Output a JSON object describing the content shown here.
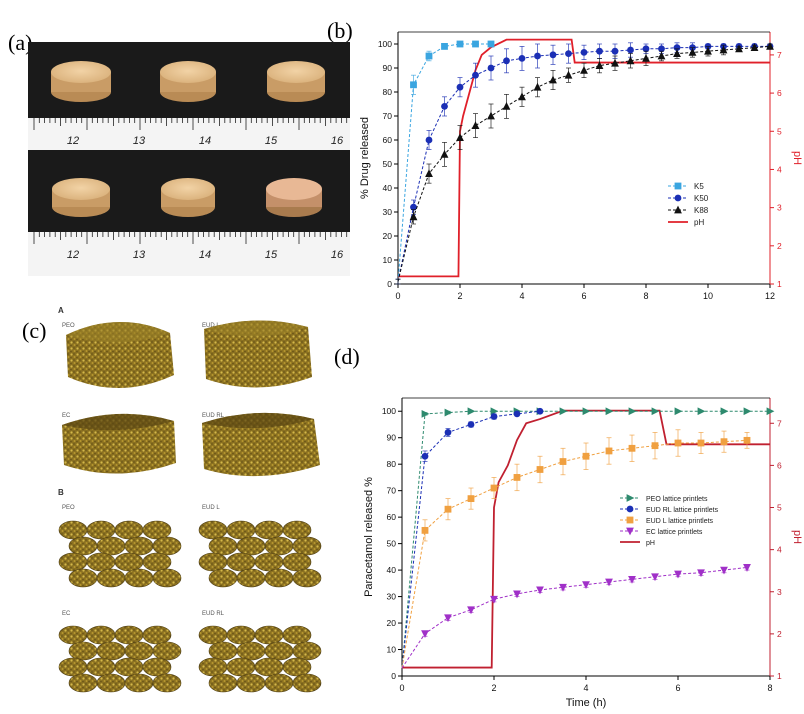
{
  "panels": {
    "a": {
      "label": "(a)",
      "ruler_ticks": [
        "12",
        "13",
        "14",
        "15",
        "16"
      ]
    },
    "b": {
      "label": "(b)"
    },
    "c": {
      "label": "(c)",
      "section_labels": [
        "A",
        "B"
      ],
      "tablet_labels": [
        "PEO",
        "EUD L",
        "EC",
        "EUD RL"
      ]
    },
    "d": {
      "label": "(d)"
    }
  },
  "chart_data": [
    {
      "id": "b",
      "type": "line",
      "xlabel": "Time (h)",
      "ylabel": "% Drug released",
      "y2label": "pH",
      "xlim": [
        0,
        12
      ],
      "ylim": [
        0,
        105
      ],
      "y2lim": [
        1,
        7.6
      ],
      "xticks": [
        0,
        2,
        4,
        6,
        8,
        10,
        12
      ],
      "yticks": [
        0,
        10,
        20,
        30,
        40,
        50,
        60,
        70,
        80,
        90,
        100
      ],
      "y2ticks": [
        1,
        2,
        3,
        4,
        5,
        6,
        7
      ],
      "legend_position": "right-middle",
      "series": [
        {
          "name": "K5",
          "color": "#3aa5e0",
          "marker": "square",
          "x": [
            0,
            0.5,
            1,
            1.5,
            2,
            2.5,
            3
          ],
          "y": [
            1,
            83,
            95,
            99,
            100,
            100,
            100
          ],
          "err": [
            1,
            4,
            2,
            1,
            0.5,
            0.5,
            0.5
          ]
        },
        {
          "name": "K50",
          "color": "#1b2fb5",
          "marker": "circle",
          "x": [
            0,
            0.5,
            1,
            1.5,
            2,
            2.5,
            3,
            3.5,
            4,
            4.5,
            5,
            5.5,
            6,
            6.5,
            7,
            7.5,
            8,
            8.5,
            9,
            9.5,
            10,
            10.5,
            11,
            11.5,
            12
          ],
          "y": [
            1,
            32,
            60,
            74,
            82,
            87,
            90,
            93,
            94,
            95,
            95.5,
            96,
            96.5,
            97,
            97,
            97.5,
            98,
            98,
            98.5,
            98.5,
            99,
            99,
            99,
            99,
            99
          ],
          "err": [
            1,
            3,
            4,
            4,
            4,
            5,
            5,
            5,
            5,
            5,
            4,
            4,
            3,
            3,
            3,
            3,
            2,
            2,
            2,
            2,
            1,
            1,
            1,
            1,
            1
          ]
        },
        {
          "name": "K88",
          "color": "#111111",
          "marker": "triangle",
          "x": [
            0,
            0.5,
            1,
            1.5,
            2,
            2.5,
            3,
            3.5,
            4,
            4.5,
            5,
            5.5,
            6,
            6.5,
            7,
            7.5,
            8,
            8.5,
            9,
            9.5,
            10,
            10.5,
            11,
            11.5,
            12
          ],
          "y": [
            1,
            28,
            46,
            54,
            61,
            66,
            70,
            74,
            78,
            82,
            85,
            87,
            89,
            91,
            92,
            93,
            94,
            95,
            96,
            96.5,
            97,
            97.5,
            98,
            98.5,
            99
          ],
          "err": [
            1,
            3,
            4,
            5,
            5,
            5,
            5,
            5,
            4,
            4,
            4,
            3,
            3,
            3,
            3,
            3,
            3,
            2,
            2,
            2,
            2,
            2,
            1,
            1,
            1
          ]
        }
      ],
      "ph": {
        "name": "pH",
        "color": "#e0202a",
        "x": [
          0,
          1.95,
          2,
          2.1,
          2.3,
          2.5,
          2.7,
          3,
          3.5,
          5.6,
          5.7,
          12
        ],
        "y": [
          1.2,
          1.2,
          5,
          5.4,
          6,
          6.6,
          7,
          7.2,
          7.4,
          7.4,
          6.8,
          6.8
        ]
      }
    },
    {
      "id": "d",
      "type": "line",
      "xlabel": "Time (h)",
      "ylabel": "Paracetamol released %",
      "y2label": "pH",
      "xlim": [
        0,
        8
      ],
      "ylim": [
        0,
        105
      ],
      "y2lim": [
        1,
        7.6
      ],
      "xticks": [
        0,
        2,
        4,
        6,
        8
      ],
      "yticks": [
        0,
        10,
        20,
        30,
        40,
        50,
        60,
        70,
        80,
        90,
        100
      ],
      "y2ticks": [
        1,
        2,
        3,
        4,
        5,
        6,
        7
      ],
      "legend_position": "right-middle",
      "series": [
        {
          "name": "PEO lattice printlets",
          "color": "#2e8a6e",
          "marker": "triangle-right",
          "x": [
            0,
            0.5,
            1,
            1.5,
            2,
            2.5,
            3,
            3.5,
            4,
            4.5,
            5,
            5.5,
            6,
            6.5,
            7,
            7.5,
            8
          ],
          "y": [
            3,
            99,
            99.5,
            100,
            100,
            100,
            100,
            100,
            100,
            100,
            100,
            100,
            100,
            100,
            100,
            100,
            100
          ],
          "err": [
            0,
            0.5,
            0.5,
            0.3,
            0.3,
            0.3,
            0.3,
            0.3,
            0.3,
            0.3,
            0.3,
            0.3,
            0.3,
            0.3,
            0.3,
            0.3,
            0.3
          ]
        },
        {
          "name": "EUD RL lattice printlets",
          "color": "#1b2fb5",
          "marker": "circle",
          "x": [
            0,
            0.5,
            1,
            1.5,
            2,
            2.5,
            3
          ],
          "y": [
            3,
            83,
            92,
            95,
            98,
            99,
            100
          ],
          "err": [
            0,
            2,
            1.5,
            1,
            1,
            0.5,
            0.5
          ]
        },
        {
          "name": "EUD L lattice printlets",
          "color": "#f0a040",
          "marker": "square",
          "x": [
            0,
            0.5,
            1,
            1.5,
            2,
            2.5,
            3,
            3.5,
            4,
            4.5,
            5,
            5.5,
            6,
            6.5,
            7,
            7.5
          ],
          "y": [
            3,
            55,
            63,
            67,
            71,
            75,
            78,
            81,
            83,
            85,
            86,
            87,
            88,
            88,
            88.5,
            89
          ],
          "err": [
            0,
            4,
            4,
            4,
            4,
            5,
            5,
            5,
            5,
            5,
            5,
            5,
            5,
            4,
            4,
            3
          ]
        },
        {
          "name": "EC lattice printlets",
          "color": "#a030c8",
          "marker": "triangle-down",
          "x": [
            0,
            0.5,
            1,
            1.5,
            2,
            2.5,
            3,
            3.5,
            4,
            4.5,
            5,
            5.5,
            6,
            6.5,
            7,
            7.5
          ],
          "y": [
            3,
            16,
            22,
            25,
            29,
            31,
            32.5,
            33.5,
            34.5,
            35.5,
            36.5,
            37.5,
            38.5,
            39,
            40,
            41
          ],
          "err": [
            0,
            1,
            1,
            1,
            1,
            1,
            1,
            1,
            1,
            1,
            1,
            1,
            1,
            1,
            1,
            1
          ]
        }
      ],
      "ph": {
        "name": "pH",
        "color": "#c02030",
        "x": [
          0,
          1.95,
          2,
          2.1,
          2.3,
          2.5,
          2.7,
          3,
          3.5,
          5.6,
          5.75,
          8
        ],
        "y": [
          1.2,
          1.2,
          5,
          5.6,
          6,
          6.6,
          7,
          7.1,
          7.3,
          7.3,
          6.5,
          6.5
        ]
      }
    }
  ]
}
